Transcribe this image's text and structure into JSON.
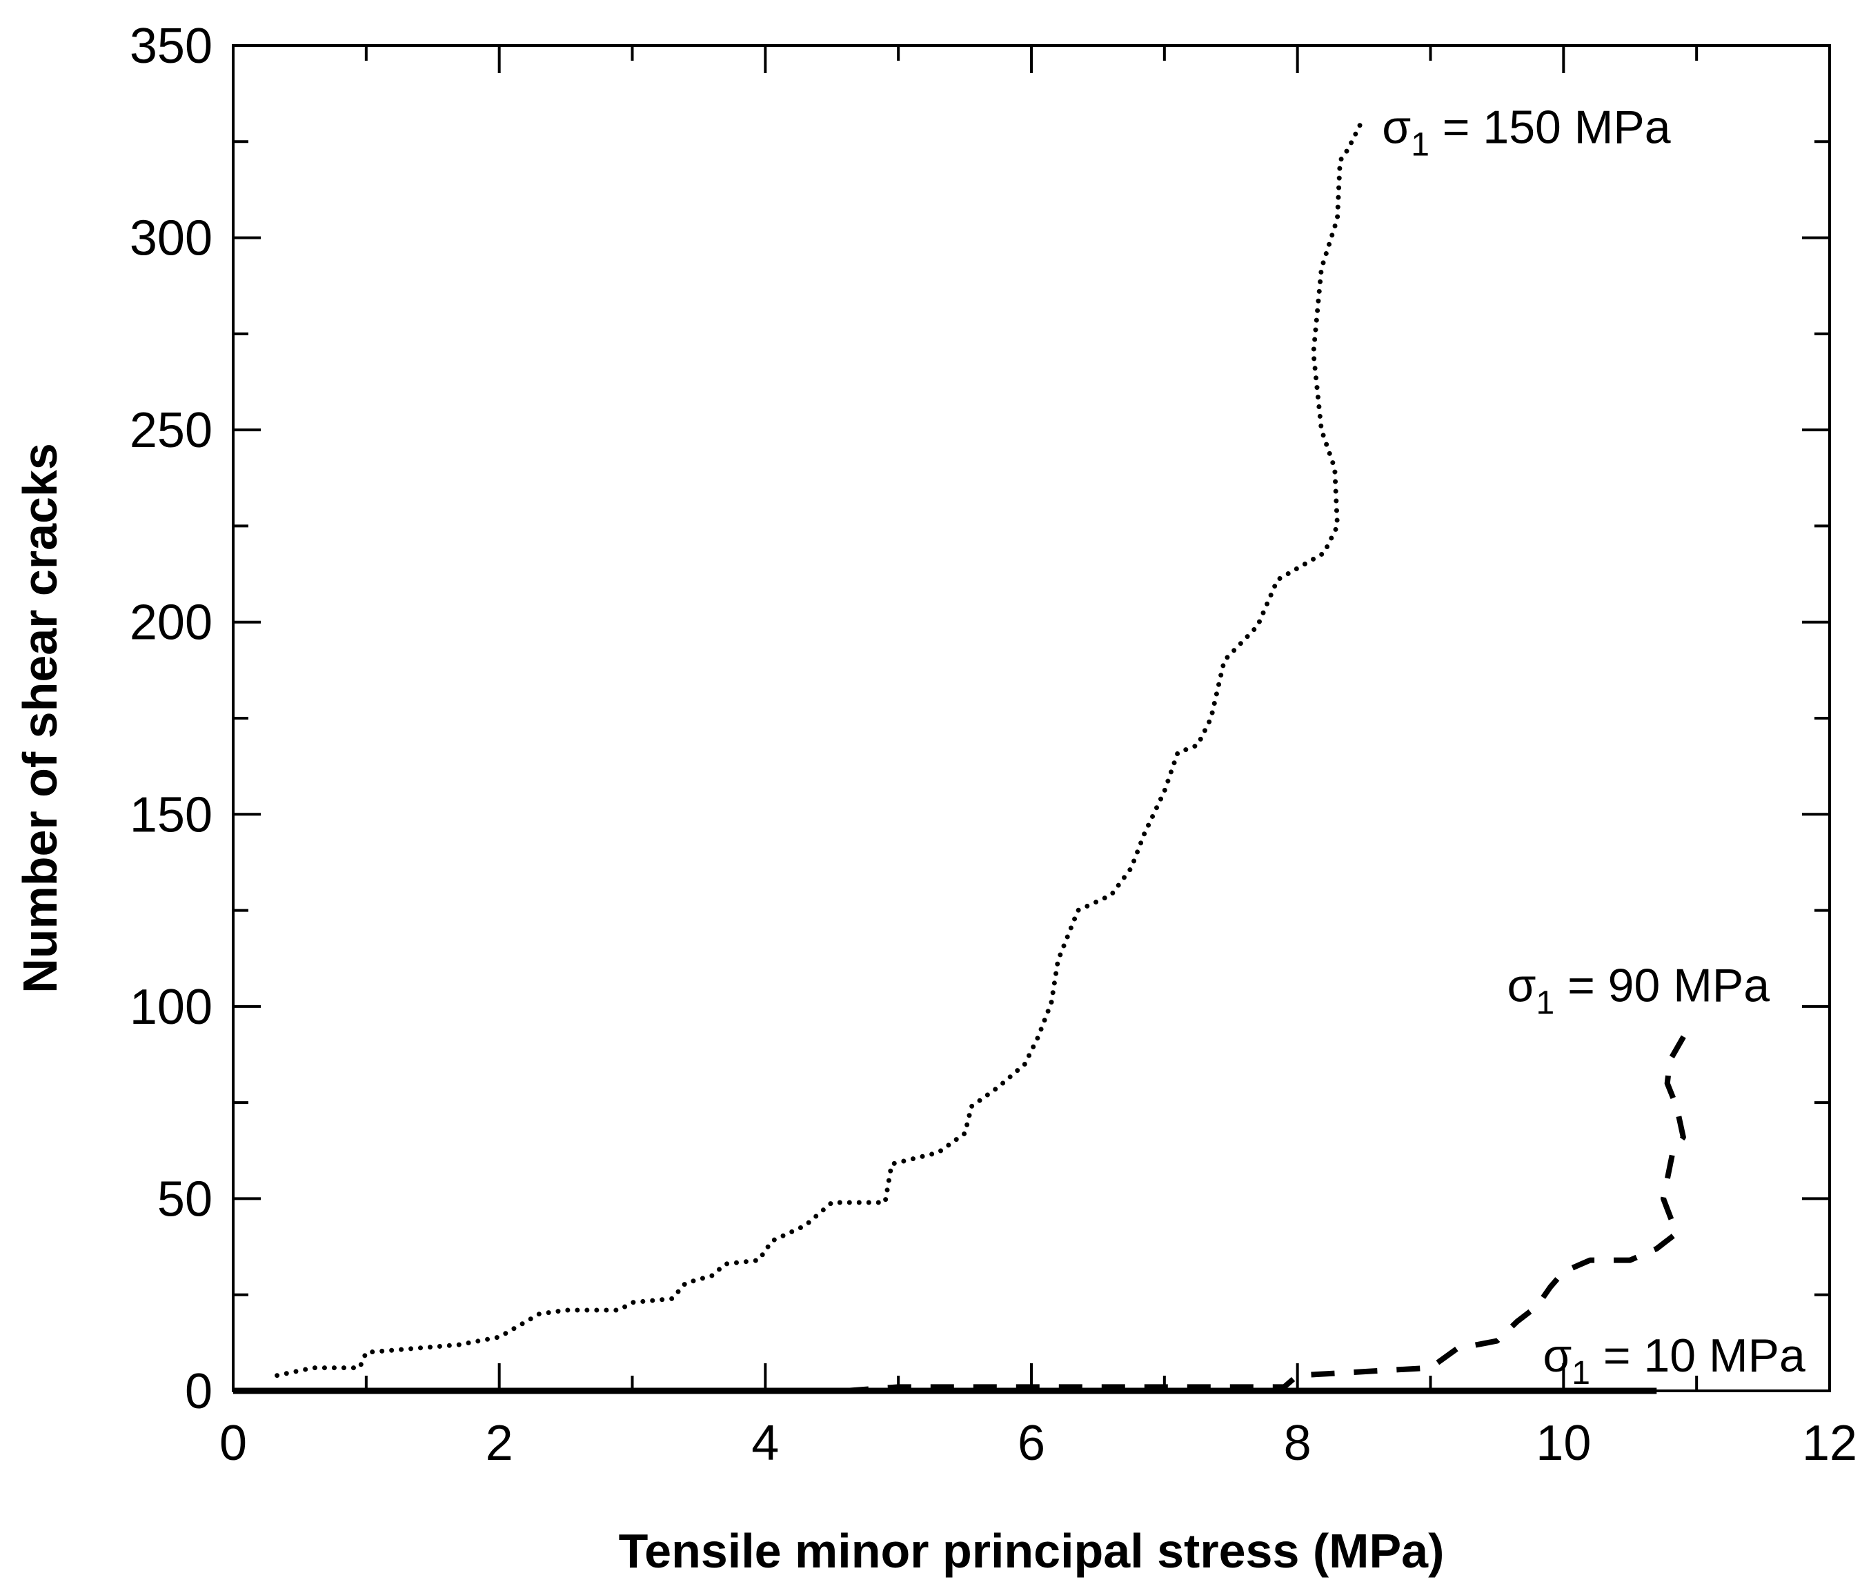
{
  "chart_data": {
    "type": "line",
    "title": "",
    "xlabel": "Tensile minor principal stress (MPa)",
    "ylabel": "Number of shear cracks",
    "xlim": [
      0,
      12
    ],
    "ylim": [
      0,
      350
    ],
    "x_ticks": [
      0,
      2,
      4,
      6,
      8,
      10,
      12
    ],
    "y_ticks": [
      0,
      50,
      100,
      150,
      200,
      250,
      300,
      350
    ],
    "grid": false,
    "series": [
      {
        "name": "σ1 = 150 MPa",
        "label_main": "σ",
        "label_sub": "1",
        "label_rest": " = 150 MPa",
        "style": "dotted",
        "x": [
          0.33,
          0.6,
          0.95,
          1.0,
          1.7,
          2.0,
          2.3,
          2.5,
          2.9,
          3.0,
          3.3,
          3.4,
          3.6,
          3.7,
          3.95,
          4.05,
          4.3,
          4.5,
          4.9,
          4.95,
          5.3,
          5.5,
          5.55,
          5.75,
          5.95,
          6.05,
          6.15,
          6.2,
          6.35,
          6.6,
          6.75,
          6.85,
          7.0,
          7.1,
          7.25,
          7.35,
          7.45,
          7.7,
          7.85,
          8.0,
          8.2,
          8.3,
          8.28,
          8.18,
          8.12,
          8.18,
          8.3,
          8.32,
          8.38,
          8.48
        ],
        "y": [
          4,
          6,
          6,
          10,
          12,
          14,
          20,
          21,
          21,
          23,
          24,
          28,
          30,
          33,
          34,
          39,
          43,
          49,
          49,
          59,
          62,
          67,
          74,
          79,
          85,
          92,
          101,
          112,
          125,
          129,
          136,
          145,
          156,
          166,
          168,
          175,
          190,
          199,
          211,
          214,
          218,
          225,
          240,
          250,
          270,
          292,
          305,
          320,
          323,
          330
        ]
      },
      {
        "name": "σ1 = 90 MPa",
        "label_main": "σ",
        "label_sub": "1",
        "label_rest": " = 90 MPa",
        "style": "dashed",
        "x": [
          4.6,
          5.0,
          5.5,
          6.0,
          6.5,
          7.0,
          7.5,
          7.9,
          8.0,
          8.5,
          9.0,
          9.2,
          9.5,
          9.65,
          9.8,
          9.9,
          10.0,
          10.2,
          10.5,
          10.7,
          10.85,
          10.75,
          10.82,
          10.9,
          10.85,
          10.78,
          10.8,
          10.95
        ],
        "y": [
          0,
          1,
          1,
          1,
          1,
          1,
          1,
          1,
          4,
          5,
          6,
          11,
          13,
          18,
          22,
          27,
          31,
          34,
          34,
          37,
          41,
          50,
          62,
          66,
          74,
          80,
          86,
          95
        ]
      },
      {
        "name": "σ1 = 10 MPa",
        "label_main": "σ",
        "label_sub": "1",
        "label_rest": " = 10 MPa",
        "style": "solid",
        "x": [
          0,
          10.7
        ],
        "y": [
          0,
          0
        ]
      }
    ]
  }
}
